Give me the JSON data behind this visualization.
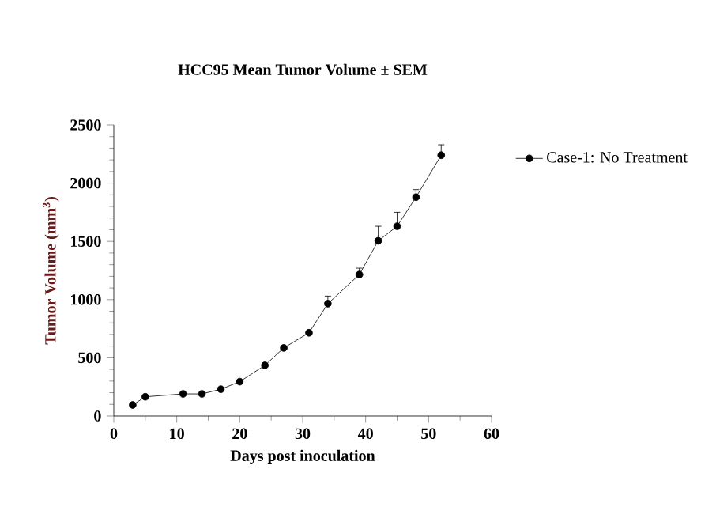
{
  "chart_data": {
    "type": "line",
    "title": "HCC95 Mean Tumor Volume ± SEM",
    "xlabel": "Days post inoculation",
    "ylabel": "Tumor Volume (mm$^{3}$)",
    "x": [
      3,
      5,
      11,
      14,
      17,
      20,
      24,
      27,
      31,
      34,
      39,
      42,
      45,
      48,
      52
    ],
    "series": [
      {
        "name": "Case-1: No Treatment",
        "color": "#000000",
        "values": [
          95,
          165,
          190,
          190,
          230,
          295,
          435,
          585,
          715,
          965,
          1215,
          1505,
          1630,
          1880,
          2240
        ],
        "errors": [
          null,
          null,
          null,
          null,
          null,
          null,
          null,
          null,
          null,
          [
            965,
            1030
          ],
          [
            1215,
            1270
          ],
          [
            1505,
            1630
          ],
          [
            1630,
            1750
          ],
          [
            1880,
            1945
          ],
          [
            2240,
            2330
          ]
        ]
      }
    ],
    "xlim": [
      0,
      60
    ],
    "xticks": [
      0,
      10,
      20,
      30,
      40,
      50,
      60
    ],
    "ylim": [
      0,
      2500
    ],
    "yticks": [
      0,
      500,
      1000,
      1500,
      2000,
      2500
    ],
    "legend": "top right",
    "marker": "circle",
    "line_style": "solid",
    "grid": false
  }
}
